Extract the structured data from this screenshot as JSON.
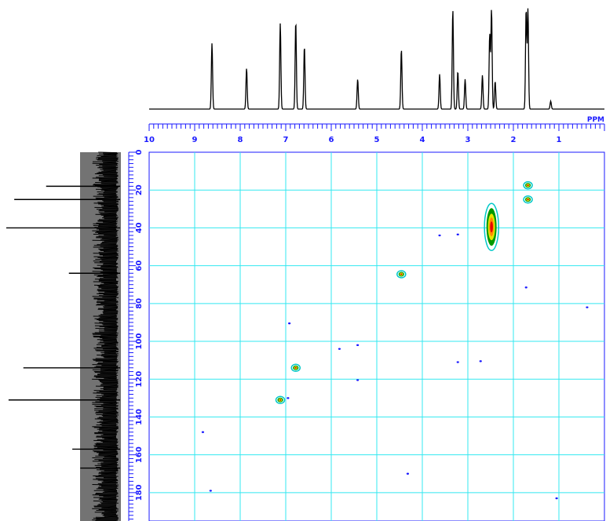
{
  "window": {
    "title": ""
  },
  "chart_data": {
    "type": "heatmap",
    "title": "",
    "x_axis": {
      "unit": "PPM",
      "range": [
        10,
        0
      ],
      "ticks": [
        10,
        9,
        8,
        7,
        6,
        5,
        4,
        3,
        2,
        1
      ]
    },
    "y_axis": {
      "unit": "",
      "range": [
        0,
        195
      ],
      "ticks": [
        0,
        20,
        40,
        60,
        80,
        100,
        120,
        140,
        160,
        180
      ]
    },
    "grid": true,
    "proton_peaks": [
      {
        "ppm": 8.62,
        "height": 0.66
      },
      {
        "ppm": 7.86,
        "height": 0.41
      },
      {
        "ppm": 7.12,
        "height": 0.86
      },
      {
        "ppm": 6.78,
        "height": 0.88
      },
      {
        "ppm": 6.59,
        "height": 0.63
      },
      {
        "ppm": 5.42,
        "height": 0.3
      },
      {
        "ppm": 4.46,
        "height": 0.6
      },
      {
        "ppm": 3.62,
        "height": 0.35
      },
      {
        "ppm": 3.33,
        "height": 1.0
      },
      {
        "ppm": 3.22,
        "height": 0.38
      },
      {
        "ppm": 3.06,
        "height": 0.3
      },
      {
        "ppm": 2.68,
        "height": 0.34
      },
      {
        "ppm": 2.52,
        "height": 0.75
      },
      {
        "ppm": 2.48,
        "height": 1.0
      },
      {
        "ppm": 2.4,
        "height": 0.28
      },
      {
        "ppm": 1.72,
        "height": 1.0
      },
      {
        "ppm": 1.68,
        "height": 1.0
      },
      {
        "ppm": 1.18,
        "height": 0.08
      }
    ],
    "carbon_peaks": [
      {
        "ppm": 18,
        "height": 0.65
      },
      {
        "ppm": 25,
        "height": 0.93
      },
      {
        "ppm": 40,
        "height": 1.0
      },
      {
        "ppm": 64,
        "height": 0.45
      },
      {
        "ppm": 114,
        "height": 0.85
      },
      {
        "ppm": 131,
        "height": 0.98
      },
      {
        "ppm": 157,
        "height": 0.42
      },
      {
        "ppm": 167,
        "height": 0.35
      }
    ],
    "cross_peaks": [
      {
        "x": 2.48,
        "y": 39.5,
        "intensity": "strong"
      },
      {
        "x": 1.68,
        "y": 17.5,
        "intensity": "medium"
      },
      {
        "x": 1.68,
        "y": 25.0,
        "intensity": "medium"
      },
      {
        "x": 4.46,
        "y": 64.5,
        "intensity": "medium"
      },
      {
        "x": 6.78,
        "y": 114.0,
        "intensity": "medium"
      },
      {
        "x": 7.12,
        "y": 131.0,
        "intensity": "medium"
      },
      {
        "x": 5.42,
        "y": 120.5,
        "intensity": "weak"
      },
      {
        "x": 3.62,
        "y": 44.0,
        "intensity": "weak"
      },
      {
        "x": 3.22,
        "y": 43.5,
        "intensity": "weak"
      },
      {
        "x": 6.92,
        "y": 90.5,
        "intensity": "weak"
      },
      {
        "x": 5.82,
        "y": 104.0,
        "intensity": "weak"
      },
      {
        "x": 5.42,
        "y": 102.0,
        "intensity": "weak"
      },
      {
        "x": 3.22,
        "y": 111.0,
        "intensity": "weak"
      },
      {
        "x": 2.72,
        "y": 110.5,
        "intensity": "weak"
      },
      {
        "x": 1.72,
        "y": 71.5,
        "intensity": "weak"
      },
      {
        "x": 0.38,
        "y": 82.0,
        "intensity": "weak"
      },
      {
        "x": 6.95,
        "y": 130.0,
        "intensity": "weak"
      },
      {
        "x": 8.82,
        "y": 148.0,
        "intensity": "weak"
      },
      {
        "x": 4.32,
        "y": 170.0,
        "intensity": "weak"
      },
      {
        "x": 8.65,
        "y": 179.0,
        "intensity": "weak"
      },
      {
        "x": 1.05,
        "y": 183.0,
        "intensity": "weak"
      }
    ],
    "colors": {
      "axis": "#1a1aff",
      "grid": "#33e8f0",
      "trace": "#000000",
      "contour_outer": "#00c8c8",
      "contour_mid": "#009900",
      "contour_inner": "#e6e600",
      "contour_core": "#e60000"
    }
  }
}
